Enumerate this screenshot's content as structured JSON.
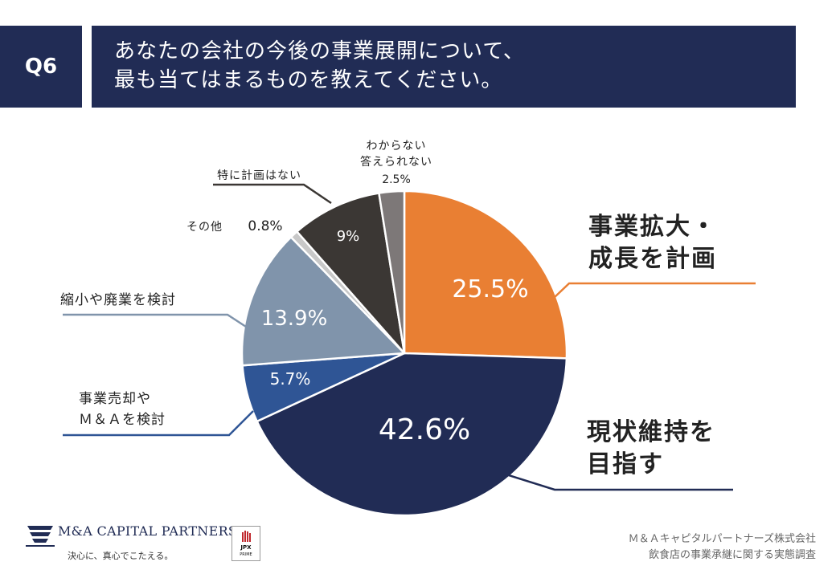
{
  "question": {
    "badge": "Q6",
    "line1": "あなたの会社の今後の事業展開について、",
    "line2": "最も当てはまるものを教えてください。"
  },
  "chart_data": {
    "type": "pie",
    "start": "12 o'clock",
    "direction": "clockwise",
    "slices": [
      {
        "label": "事業拡大・成長を計画",
        "label_lines": [
          "事業拡大・",
          "成長を計画"
        ],
        "value": 25.5,
        "value_label": "25.5%",
        "color": "#e97f33"
      },
      {
        "label": "現状維持を目指す",
        "label_lines": [
          "現状維持を",
          "目指す"
        ],
        "value": 42.6,
        "value_label": "42.6%",
        "color": "#212c55"
      },
      {
        "label": "事業売却やM&Aを検討",
        "label_lines": [
          "事業売却や",
          "Ｍ＆Ａを検討"
        ],
        "value": 5.7,
        "value_label": "5.7%",
        "color": "#2f5595"
      },
      {
        "label": "縮小や廃業を検討",
        "label_lines": [
          "縮小や廃業を検討"
        ],
        "value": 13.9,
        "value_label": "13.9%",
        "color": "#8094ab"
      },
      {
        "label": "その他",
        "label_lines": [
          "その他"
        ],
        "value": 0.8,
        "value_label": "0.8%",
        "color": "#c8c8c8"
      },
      {
        "label": "特に計画はない",
        "label_lines": [
          "特に計画はない"
        ],
        "value": 9,
        "value_label": "9%",
        "color": "#3b3734"
      },
      {
        "label": "わからない答えられない",
        "label_lines": [
          "わからない",
          "答えられない"
        ],
        "value": 2.5,
        "value_label": "2.5%",
        "color": "#7d7878"
      }
    ]
  },
  "footer": {
    "logo_name": "M&A CAPITAL PARTNERS",
    "logo_tagline": "決心に、真心でこたえる。",
    "jpx_text": "JPX",
    "jpx_prime": "PRIME",
    "source_line1": "Ｍ＆Ａキャピタルパートナーズ株式会社",
    "source_line2": "飲食店の事業承継に関する実態調査"
  }
}
